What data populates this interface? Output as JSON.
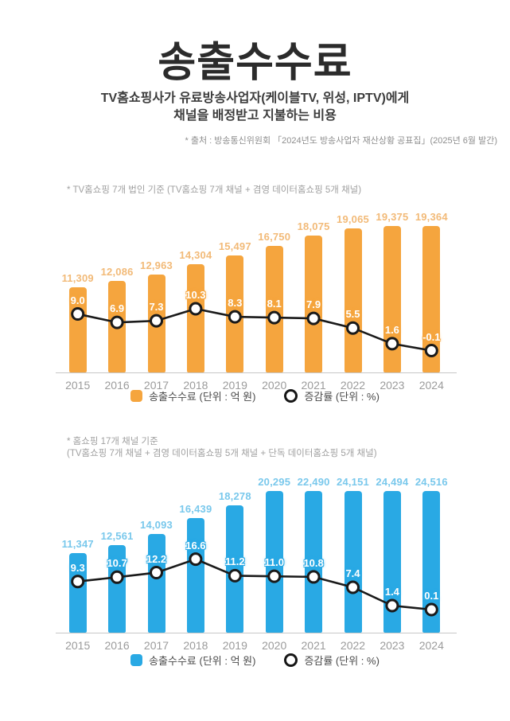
{
  "page": {
    "title": "송출수수료",
    "subtitle_line1": "TV홈쇼핑사가 유료방송사업자(케이블TV, 위성, IPTV)에게",
    "subtitle_line2": "채널을 배정받고 지불하는 비용",
    "source": "* 출처 : 방송통신위원회 「2024년도 방송사업자 재산상황 공표집」(2025년 6월 발간)"
  },
  "chart_data": [
    {
      "type": "bar",
      "notes": [
        "* TV홈쇼핑 7개 법인 기준 (TV홈쇼핑 7개 채널 + 겸영 데이터홈쇼핑 5개 채널)"
      ],
      "categories": [
        "2015",
        "2016",
        "2017",
        "2018",
        "2019",
        "2020",
        "2021",
        "2022",
        "2023",
        "2024"
      ],
      "bar_series": {
        "name": "송출수수료 (단위 : 억 원)",
        "color": "#F5A53E",
        "label_color": "#F2BA78",
        "values": [
          11309,
          12086,
          12963,
          14304,
          15497,
          16750,
          18075,
          19065,
          19375,
          19364
        ],
        "labels": [
          "11,309",
          "12,086",
          "12,963",
          "14,304",
          "15,497",
          "16,750",
          "18,075",
          "19,065",
          "19,375",
          "19,364"
        ]
      },
      "line_series": {
        "name": "증감률 (단위 : %)",
        "color": "#1a1a1a",
        "values": [
          9.0,
          6.9,
          7.3,
          10.3,
          8.3,
          8.1,
          7.9,
          5.5,
          1.6,
          -0.1
        ],
        "labels": [
          "9.0",
          "6.9",
          "7.3",
          "10.3",
          "8.3",
          "8.1",
          "7.9",
          "5.5",
          "1.6",
          "-0.1"
        ]
      },
      "legend_position": "bottom",
      "grid": false
    },
    {
      "type": "bar",
      "notes": [
        "* 홈쇼핑 17개 채널 기준",
        "(TV홈쇼핑 7개 채널 + 겸영 데이터홈쇼핑 5개 채널 + 단독 데이터홈쇼핑 5개 채널)"
      ],
      "categories": [
        "2015",
        "2016",
        "2017",
        "2018",
        "2019",
        "2020",
        "2021",
        "2022",
        "2023",
        "2024"
      ],
      "bar_series": {
        "name": "송출수수료 (단위 : 억 원)",
        "color": "#29A9E4",
        "label_color": "#79C8EC",
        "values": [
          11347,
          12561,
          14093,
          16439,
          18278,
          20295,
          22490,
          24151,
          24494,
          24516
        ],
        "labels": [
          "11,347",
          "12,561",
          "14,093",
          "16,439",
          "18,278",
          "20,295",
          "22,490",
          "24,151",
          "24,494",
          "24,516"
        ]
      },
      "line_series": {
        "name": "증감률 (단위 : %)",
        "color": "#1a1a1a",
        "values": [
          9.3,
          10.7,
          12.2,
          16.6,
          11.2,
          11.0,
          10.8,
          7.4,
          1.4,
          0.1
        ],
        "labels": [
          "9.3",
          "10.7",
          "12.2",
          "16.6",
          "11.2",
          "11.0",
          "10.8",
          "7.4",
          "1.4",
          "0.1"
        ]
      },
      "legend_position": "bottom",
      "grid": false
    }
  ]
}
